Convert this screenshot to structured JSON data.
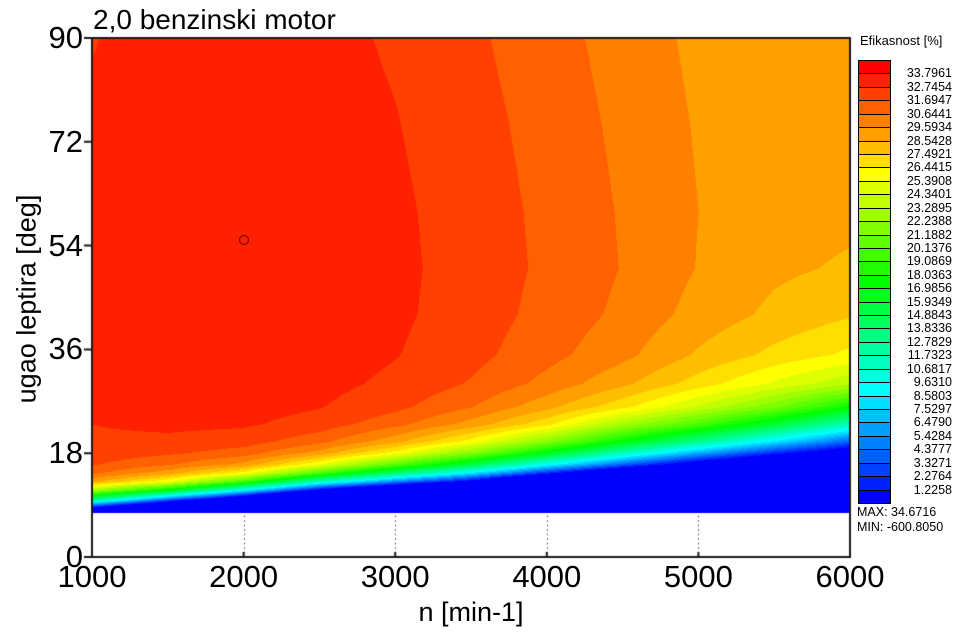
{
  "title": "2,0 benzinski motor",
  "axes": {
    "x": {
      "label": "n [min-1]",
      "range": [
        1000,
        6000
      ],
      "tick_values": [
        1000,
        2000,
        3000,
        4000,
        5000,
        6000
      ],
      "tick_labels": [
        "1000",
        "2000",
        "3000",
        "4000",
        "5000",
        "6000"
      ],
      "gridline_values": [
        2000,
        3000,
        4000,
        5000
      ],
      "grid_style": "dotted"
    },
    "y": {
      "label": "ugao leptira  [deg]",
      "range": [
        0,
        90
      ],
      "tick_values": [
        0,
        18,
        36,
        54,
        72,
        90
      ],
      "tick_labels": [
        "0",
        "18",
        "36",
        "54",
        "72",
        "90"
      ]
    }
  },
  "legend": {
    "title": "Efikasnost  [%]",
    "levels": [
      "33.7961",
      "32.7454",
      "31.6947",
      "30.6441",
      "29.5934",
      "28.5428",
      "27.4921",
      "26.4415",
      "25.3908",
      "24.3401",
      "23.2895",
      "22.2388",
      "21.1882",
      "20.1376",
      "19.0869",
      "18.0363",
      "16.9856",
      "15.9349",
      "14.8843",
      "13.8336",
      "12.7829",
      "11.7323",
      "10.6817",
      "9.6310",
      "8.5803",
      "7.5297",
      "6.4790",
      "5.4284",
      "4.3777",
      "3.3271",
      "2.2764",
      "1.2258"
    ],
    "max_label": "MAX: 34.6716",
    "min_label": "MIN: -600.8050",
    "bands": 33
  },
  "colors": {
    "colormap": "rainbow",
    "hue_start_deg": 0,
    "hue_end_deg": 240,
    "top_band": "#ff0000",
    "bottom_band": "#0000ff",
    "background": "#ffffff",
    "frame": "#1a1a1a",
    "marker_outline": "#5a0500"
  },
  "chart_data": {
    "type": "heatmap",
    "title": "2,0 benzinski motor",
    "xlabel": "n [min-1]",
    "ylabel": "ugao leptira [deg]",
    "xlim": [
      1000,
      6000
    ],
    "ylim": [
      0,
      90
    ],
    "z_name": "Efikasnost [%]",
    "z_max": 34.6716,
    "z_min": -600.805,
    "data_min_deg": 7.5,
    "max_point": {
      "rpm": 2000,
      "deg": 55
    },
    "x_rpm": [
      1000,
      1500,
      2000,
      2500,
      3000,
      3500,
      4000,
      4500,
      5000,
      5500,
      6000
    ],
    "y_deg": [
      7.5,
      8.5,
      10,
      11.5,
      13,
      14.5,
      16,
      18,
      20,
      23,
      26,
      30,
      35,
      42,
      50,
      60,
      75,
      90
    ],
    "z_efficiency": [
      [
        -250,
        1.2,
        14,
        23,
        28.8,
        30.9,
        31.8,
        32.3,
        32.55,
        32.75,
        32.85,
        32.95,
        33.05,
        33.1,
        33.1,
        33.05,
        32.9,
        32.7
      ],
      [
        -350,
        -8,
        5,
        17,
        25.5,
        29.0,
        30.8,
        31.9,
        32.5,
        33.0,
        33.2,
        33.35,
        33.45,
        33.5,
        33.5,
        33.45,
        33.35,
        33.2
      ],
      [
        -450,
        -30,
        -3,
        9,
        19.5,
        26.0,
        29.3,
        31.2,
        32.2,
        32.9,
        33.2,
        33.4,
        33.55,
        33.65,
        33.7,
        33.6,
        33.45,
        33.3
      ],
      [
        -500,
        -60,
        -16,
        0,
        11,
        20,
        25.5,
        29.2,
        31.0,
        32.3,
        32.8,
        33.1,
        33.3,
        33.4,
        33.45,
        33.4,
        33.25,
        33.1
      ],
      [
        -550,
        -100,
        -32,
        -6,
        5,
        14,
        20.5,
        26.0,
        28.9,
        31.0,
        32.0,
        32.5,
        32.8,
        32.95,
        33.0,
        32.95,
        32.8,
        32.6
      ],
      [
        -600,
        -150,
        -52,
        -16,
        0,
        8.5,
        15.5,
        22,
        26,
        29.2,
        30.7,
        31.6,
        32.05,
        32.25,
        32.3,
        32.25,
        32.1,
        31.9
      ],
      [
        -600,
        -200,
        -80,
        -30,
        -8,
        2,
        9.5,
        17,
        22,
        26.8,
        28.9,
        30.3,
        31.0,
        31.35,
        31.5,
        31.45,
        31.3,
        31.1
      ],
      [
        -600,
        -250,
        -110,
        -45,
        -17,
        -4,
        4,
        11.5,
        17.5,
        23,
        26.8,
        28.8,
        29.9,
        30.4,
        30.6,
        30.55,
        30.4,
        30.2
      ],
      [
        -600,
        -300,
        -140,
        -62,
        -28,
        -10,
        -1,
        6.5,
        13,
        20,
        24.2,
        27.0,
        28.4,
        29.2,
        29.55,
        29.6,
        29.5,
        29.35
      ],
      [
        -600,
        -350,
        -170,
        -80,
        -38,
        -16,
        -5,
        2,
        8.5,
        16,
        21.5,
        25.2,
        27.2,
        28.3,
        28.75,
        28.95,
        29.0,
        28.85
      ],
      [
        -600,
        -400,
        -200,
        -100,
        -50,
        -22,
        -9,
        -1.5,
        4,
        11.5,
        17.8,
        23.5,
        26.2,
        27.6,
        28.4,
        28.8,
        29.05,
        29.0
      ]
    ]
  }
}
